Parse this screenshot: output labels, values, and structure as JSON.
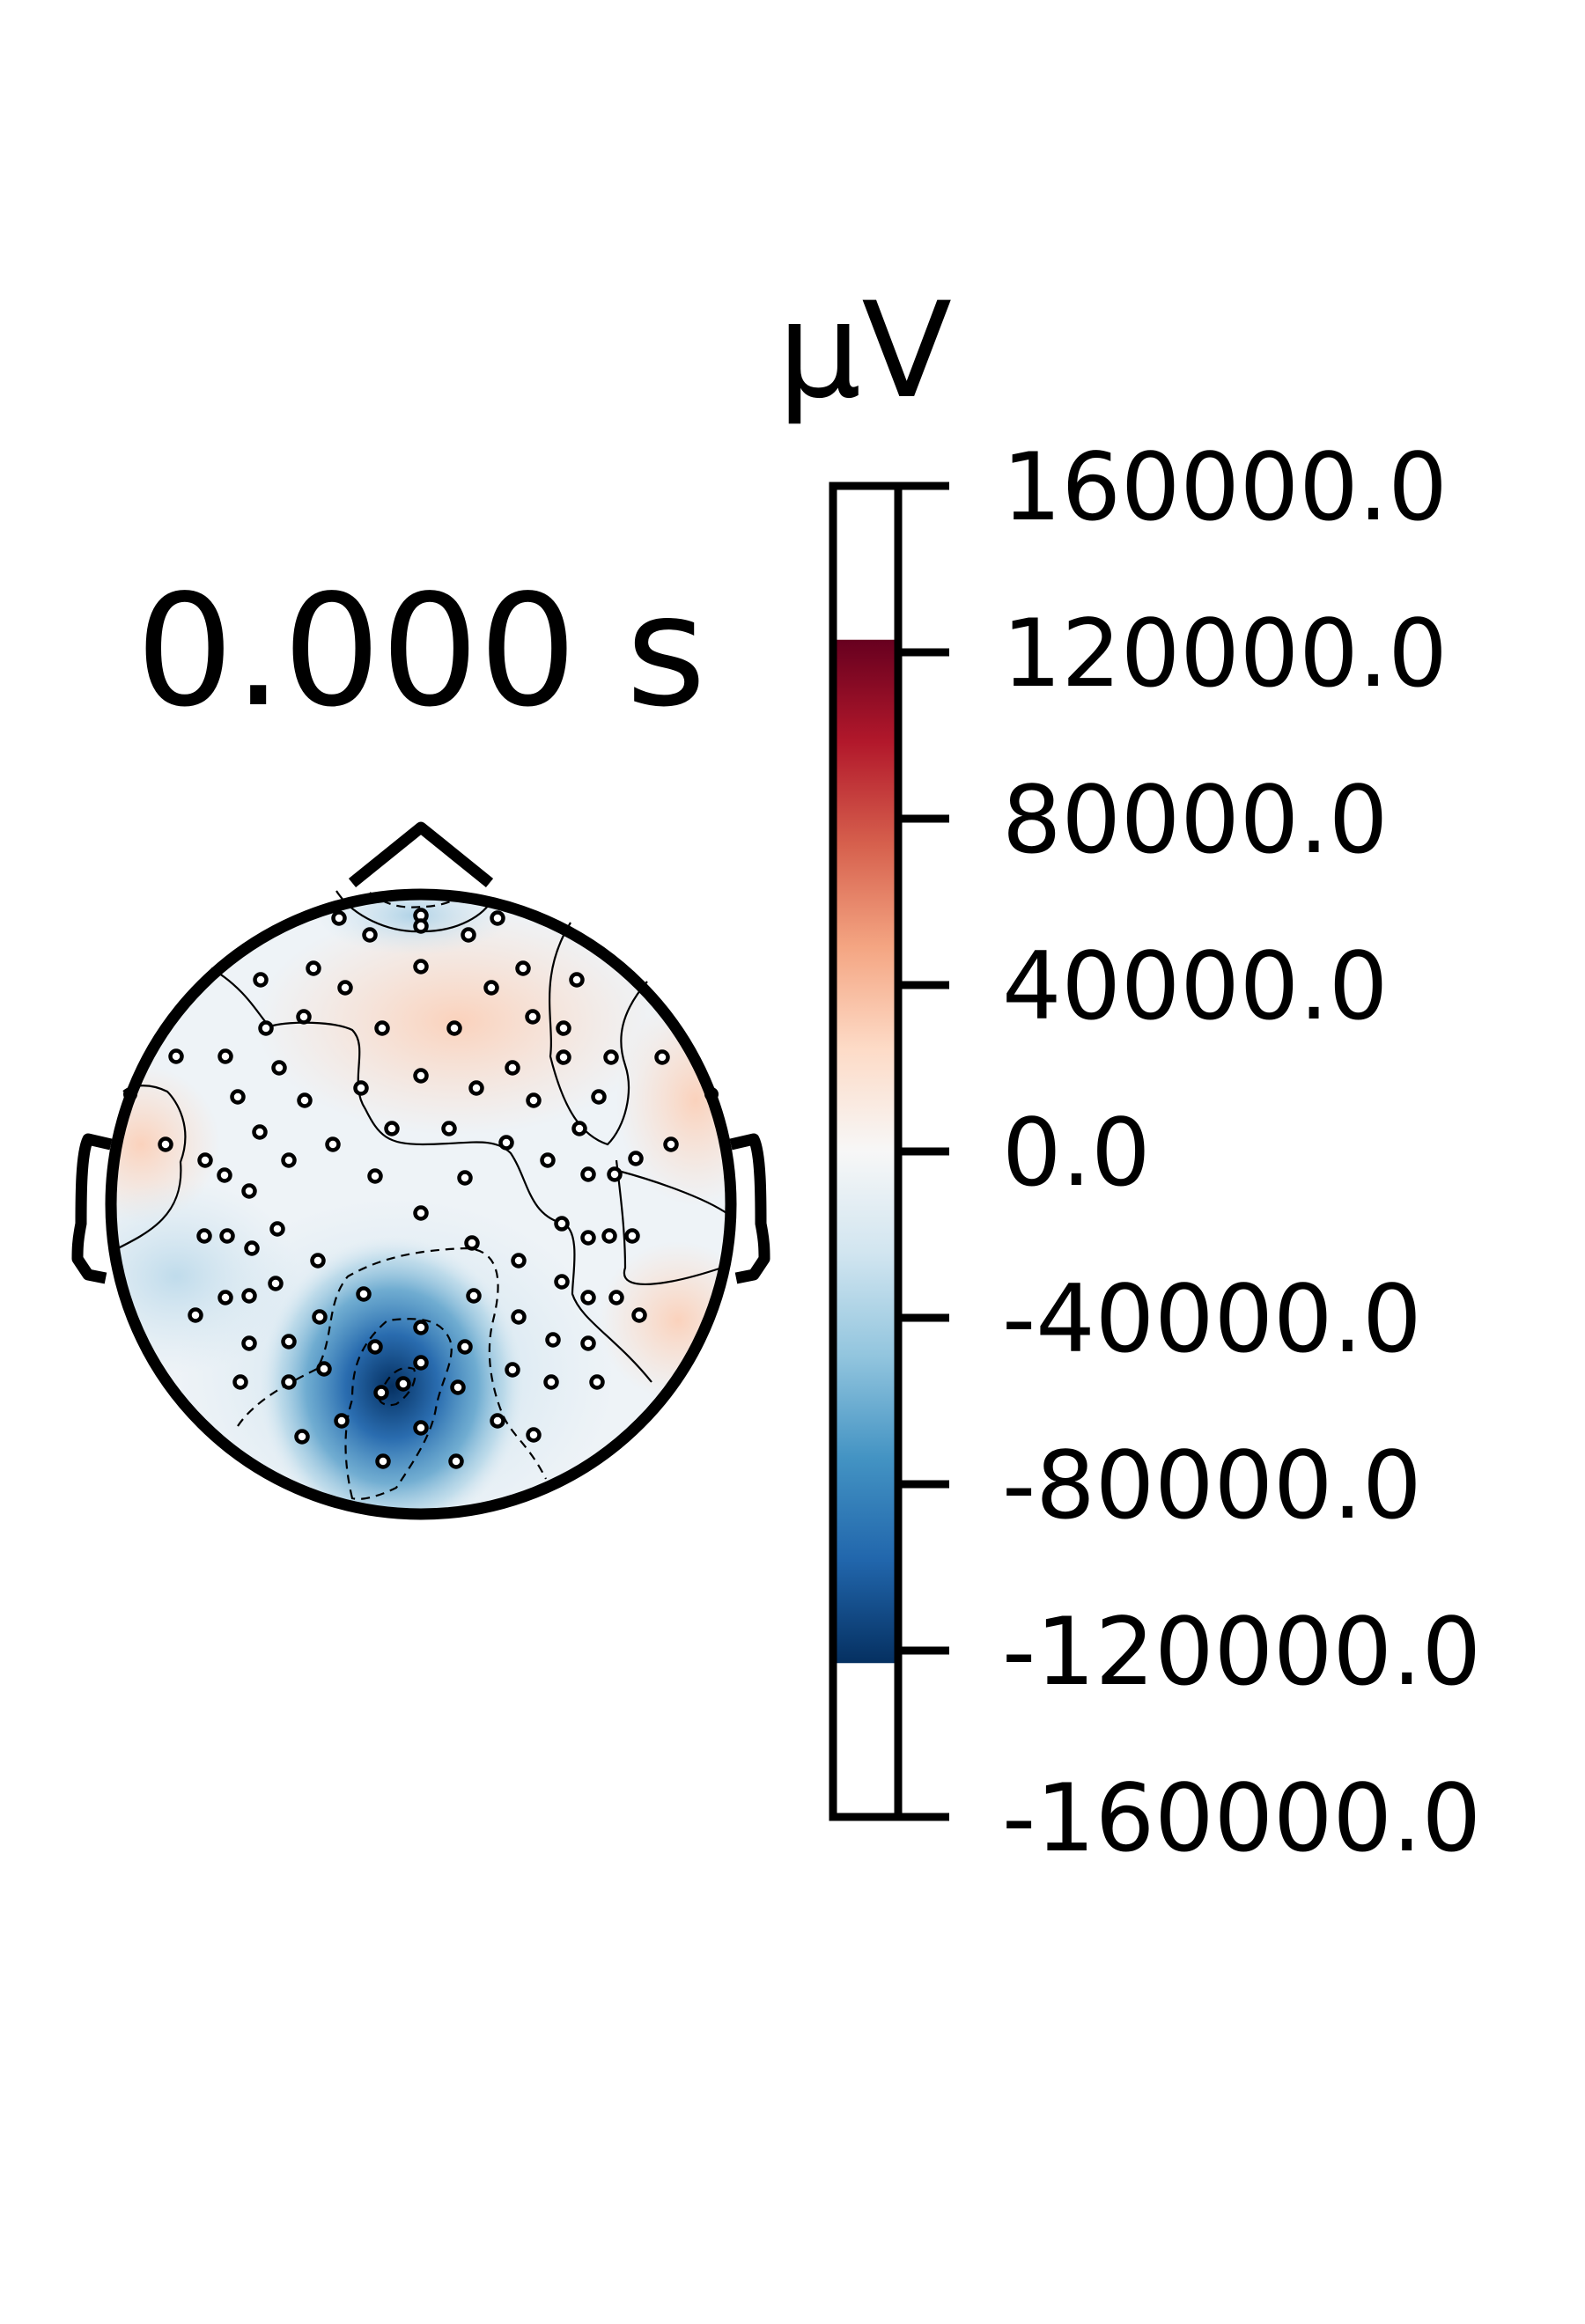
{
  "chart_data": {
    "type": "heatmap",
    "title": "0.000 s",
    "colorbar": {
      "unit_label": "µV",
      "ticks": [
        "160000.0",
        "120000.0",
        "80000.0",
        "40000.0",
        "0.0",
        "-40000.0",
        "-80000.0",
        "-120000.0",
        "-160000.0"
      ],
      "tick_values": [
        160000,
        120000,
        80000,
        40000,
        0,
        -40000,
        -80000,
        -120000,
        -160000
      ],
      "range": [
        -160000,
        160000
      ],
      "color_range": [
        -123000,
        123000
      ],
      "colormap": "RdBu_r",
      "stops": [
        "#053061",
        "#2166ac",
        "#4393c3",
        "#92c5de",
        "#d1e5f0",
        "#f7f7f7",
        "#fddbc7",
        "#f4a582",
        "#d6604d",
        "#b2182b",
        "#67001f"
      ]
    },
    "topomap": {
      "shape": "head",
      "sensor_marker": "open-circle",
      "contours": true,
      "minimum_region": "posterior / occipital",
      "maximum_region": "frontal"
    }
  }
}
